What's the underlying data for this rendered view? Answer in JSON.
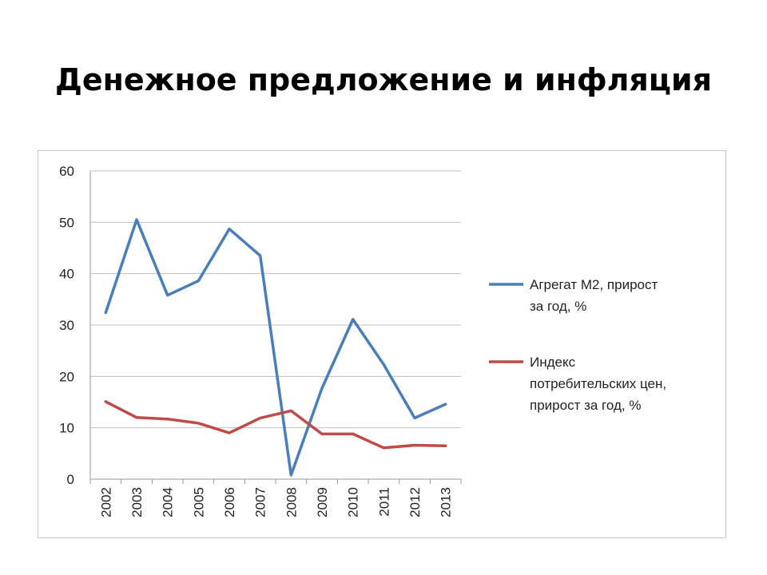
{
  "slide": {
    "title": "Денежное предложение и инфляция"
  },
  "chart_data": {
    "type": "line",
    "categories": [
      "2002",
      "2003",
      "2004",
      "2005",
      "2006",
      "2007",
      "2008",
      "2009",
      "2010",
      "2011",
      "2012",
      "2013"
    ],
    "series": [
      {
        "name": "Агрегат М2, прирост за год, %",
        "legend_lines": [
          "Агрегат М2, прирост",
          "за год, %"
        ],
        "color": "#4a7ebb",
        "values": [
          32.4,
          50.5,
          35.8,
          38.6,
          48.7,
          43.5,
          0.8,
          17.7,
          31.1,
          22.3,
          11.9,
          14.6
        ]
      },
      {
        "name": "Индекс потребительских цен, прирост за год, %",
        "legend_lines": [
          "Индекс",
          "потребительских цен,",
          "прирост за год, %"
        ],
        "color": "#be4b48",
        "values": [
          15.1,
          12.0,
          11.7,
          10.9,
          9.0,
          11.9,
          13.3,
          8.8,
          8.8,
          6.1,
          6.6,
          6.5
        ]
      }
    ],
    "ylim": [
      0,
      60
    ],
    "yticks": [
      "0",
      "10",
      "20",
      "30",
      "40",
      "50",
      "60"
    ],
    "grid": true,
    "legend_position": "right",
    "title": "",
    "xlabel": "",
    "ylabel": ""
  }
}
